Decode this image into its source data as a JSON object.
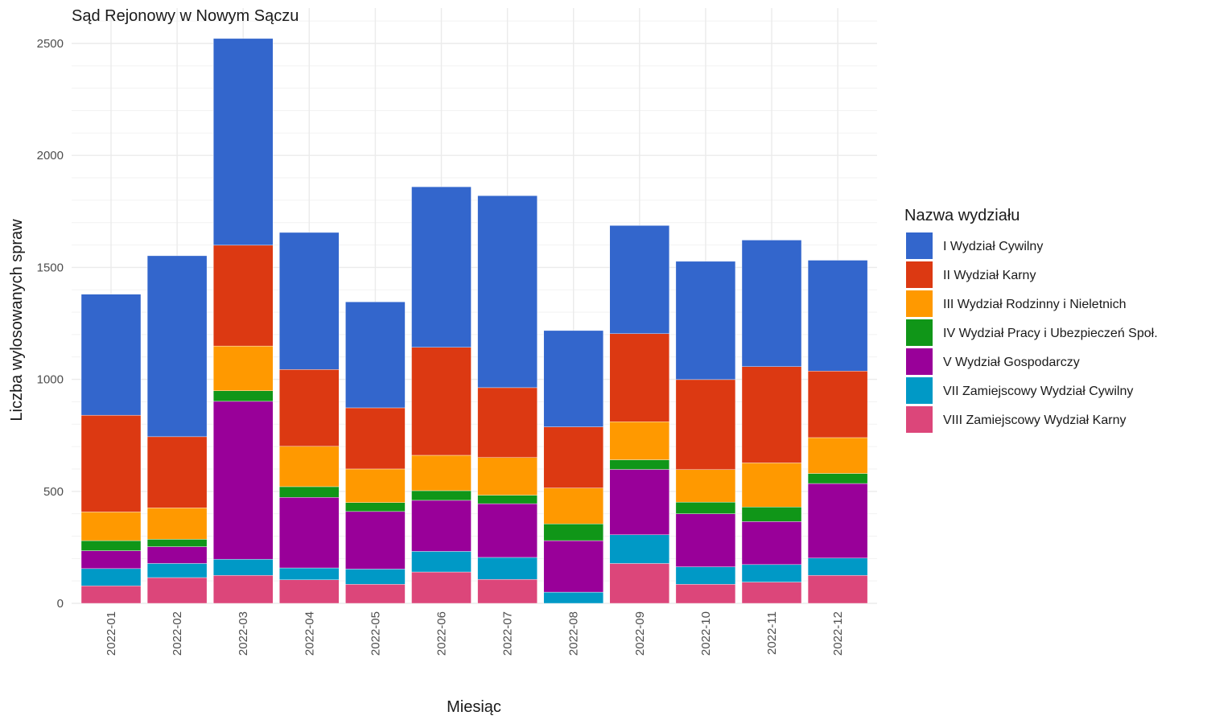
{
  "chart_data": {
    "type": "bar",
    "stacked": true,
    "title": "Sąd Rejonowy w Nowym Sączu",
    "xlabel": "Miesiąc",
    "ylabel": "Liczba wylosowanych spraw",
    "ylim": [
      0,
      2500
    ],
    "yticks": [
      "0",
      "500",
      "1000",
      "1500",
      "2000",
      "2500"
    ],
    "grid": true,
    "legend_title": "Nazwa wydziału",
    "legend_position": "right",
    "categories": [
      "2022-01",
      "2022-02",
      "2022-03",
      "2022-04",
      "2022-05",
      "2022-06",
      "2022-07",
      "2022-08",
      "2022-09",
      "2022-10",
      "2022-11",
      "2022-12"
    ],
    "series": [
      {
        "name": "VIII Zamiejscowy Wydział Karny",
        "color": "#DC467A",
        "values": [
          78,
          115,
          125,
          105,
          85,
          140,
          107,
          0,
          178,
          85,
          95,
          125
        ]
      },
      {
        "name": "VII Zamiejscowy Wydział Cywilny",
        "color": "#0099C6",
        "values": [
          77,
          63,
          72,
          53,
          68,
          92,
          98,
          50,
          128,
          78,
          78,
          77
        ]
      },
      {
        "name": "V Wydział Gospodarczy",
        "color": "#990099",
        "values": [
          80,
          75,
          705,
          315,
          257,
          228,
          240,
          230,
          292,
          237,
          192,
          333
        ]
      },
      {
        "name": "IV Wydział Pracy i Ubezpieczeń Społ.",
        "color": "#109618",
        "values": [
          45,
          33,
          47,
          48,
          40,
          43,
          38,
          75,
          43,
          52,
          65,
          45
        ]
      },
      {
        "name": "III Wydział Rodzinny i Nieletnich",
        "color": "#FF9900",
        "values": [
          128,
          140,
          200,
          180,
          150,
          158,
          168,
          160,
          170,
          145,
          197,
          160
        ]
      },
      {
        "name": "II Wydział Karny",
        "color": "#DC3912",
        "values": [
          432,
          318,
          450,
          343,
          273,
          482,
          312,
          273,
          393,
          402,
          430,
          297
        ]
      },
      {
        "name": "I Wydział Cywilny",
        "color": "#3366CC",
        "values": [
          540,
          808,
          923,
          612,
          473,
          717,
          857,
          430,
          483,
          528,
          565,
          495
        ]
      }
    ]
  }
}
